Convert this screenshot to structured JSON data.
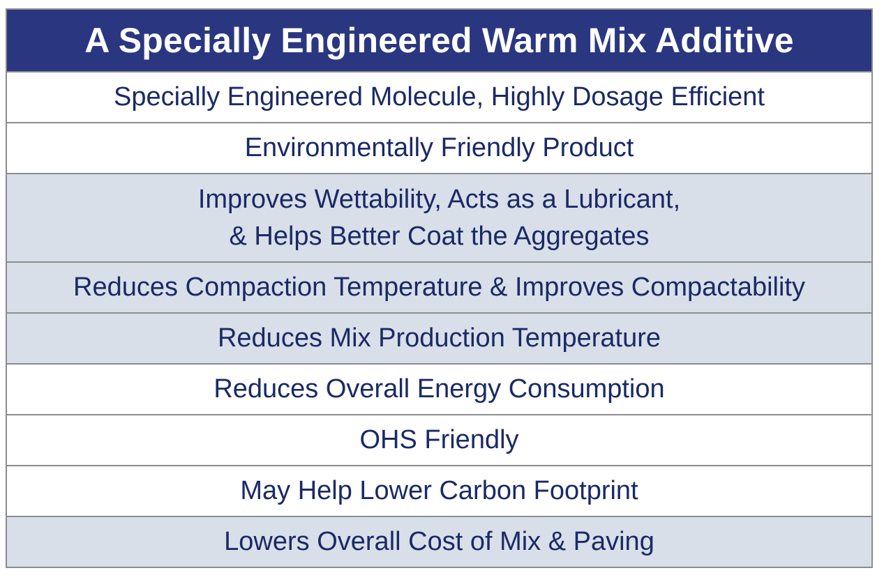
{
  "header": {
    "title": "A Specially Engineered Warm Mix Additive"
  },
  "rows": [
    {
      "text": "Specially Engineered Molecule, Highly Dosage Efficient"
    },
    {
      "text": "Environmentally Friendly Product"
    },
    {
      "line1": "Improves Wettability, Acts as a Lubricant,",
      "line2": "& Helps Better Coat the Aggregates"
    },
    {
      "text": "Reduces Compaction Temperature & Improves Compactability"
    },
    {
      "text": "Reduces Mix Production Temperature"
    },
    {
      "text": "Reduces Overall Energy Consumption"
    },
    {
      "text": "OHS Friendly"
    },
    {
      "text": "May Help Lower Carbon Footprint"
    },
    {
      "text": "Lowers Overall Cost of Mix & Paving"
    }
  ],
  "colors": {
    "header_bg": "#2a3780",
    "text": "#1a2a66",
    "shade_row": "#d9dfe9",
    "border": "#8c8c8c"
  }
}
